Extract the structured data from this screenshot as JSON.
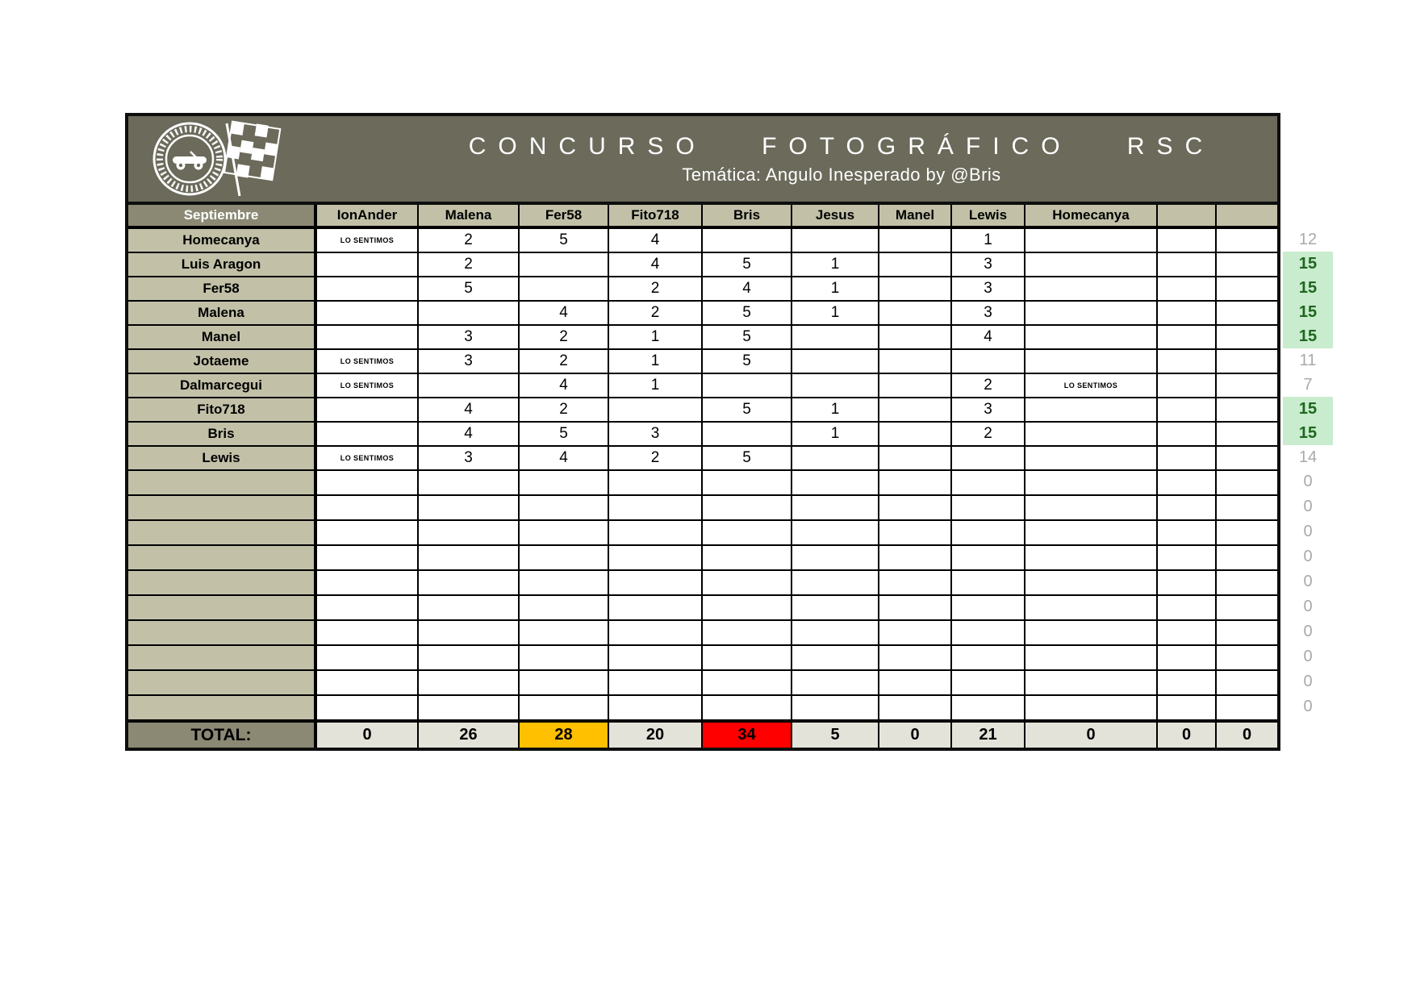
{
  "header": {
    "title": "CONCURSO FOTOGRÁFICO RSC",
    "subtitle": "Temática: Angulo Inesperado by @Bris",
    "logo": "roadster-sport-club-badge"
  },
  "sheet": {
    "month_label": "Septiembre",
    "columns": [
      "IonAnder",
      "Malena",
      "Fer58",
      "Fito718",
      "Bris",
      "Jesus",
      "Manel",
      "Lewis",
      "Homecanya",
      "",
      ""
    ],
    "apology_text": "LO SENTIMOS",
    "rows": [
      {
        "name": "Homecanya",
        "cells": [
          "LO SENTIMOS",
          "2",
          "5",
          "4",
          "",
          "",
          "",
          "1",
          "",
          "",
          ""
        ],
        "total": "12",
        "total_style": "gray"
      },
      {
        "name": "Luis Aragon",
        "cells": [
          "",
          "2",
          "",
          "4",
          "5",
          "1",
          "",
          "3",
          "",
          "",
          ""
        ],
        "total": "15",
        "total_style": "green"
      },
      {
        "name": "Fer58",
        "cells": [
          "",
          "5",
          "",
          "2",
          "4",
          "1",
          "",
          "3",
          "",
          "",
          ""
        ],
        "total": "15",
        "total_style": "green"
      },
      {
        "name": "Malena",
        "cells": [
          "",
          "",
          "4",
          "2",
          "5",
          "1",
          "",
          "3",
          "",
          "",
          ""
        ],
        "total": "15",
        "total_style": "green"
      },
      {
        "name": "Manel",
        "cells": [
          "",
          "3",
          "2",
          "1",
          "5",
          "",
          "",
          "4",
          "",
          "",
          ""
        ],
        "total": "15",
        "total_style": "green"
      },
      {
        "name": "Jotaeme",
        "cells": [
          "LO SENTIMOS",
          "3",
          "2",
          "1",
          "5",
          "",
          "",
          "",
          "",
          "",
          ""
        ],
        "total": "11",
        "total_style": "gray"
      },
      {
        "name": "Dalmarcegui",
        "cells": [
          "LO SENTIMOS",
          "",
          "4",
          "1",
          "",
          "",
          "",
          "2",
          "LO SENTIMOS",
          "",
          ""
        ],
        "total": "7",
        "total_style": "gray"
      },
      {
        "name": "Fito718",
        "cells": [
          "",
          "4",
          "2",
          "",
          "5",
          "1",
          "",
          "3",
          "",
          "",
          ""
        ],
        "total": "15",
        "total_style": "green"
      },
      {
        "name": "Bris",
        "cells": [
          "",
          "4",
          "5",
          "3",
          "",
          "1",
          "",
          "2",
          "",
          "",
          ""
        ],
        "total": "15",
        "total_style": "green"
      },
      {
        "name": "Lewis",
        "cells": [
          "LO SENTIMOS",
          "3",
          "4",
          "2",
          "5",
          "",
          "",
          "",
          "",
          "",
          ""
        ],
        "total": "14",
        "total_style": "gray"
      }
    ],
    "empty_row_count": 10,
    "empty_row_total": "0",
    "total_row": {
      "label": "TOTAL:",
      "values": [
        {
          "value": "0",
          "style": "plain"
        },
        {
          "value": "26",
          "style": "plain"
        },
        {
          "value": "28",
          "style": "orange"
        },
        {
          "value": "20",
          "style": "plain"
        },
        {
          "value": "34",
          "style": "red"
        },
        {
          "value": "5",
          "style": "plain"
        },
        {
          "value": "0",
          "style": "plain"
        },
        {
          "value": "21",
          "style": "plain"
        },
        {
          "value": "0",
          "style": "plain"
        },
        {
          "value": "0",
          "style": "plain"
        },
        {
          "value": "0",
          "style": "plain"
        }
      ]
    }
  },
  "colors": {
    "header_bar": "#6b6a5b",
    "month_cell": "#8b8974",
    "header_cell": "#c2c1a8",
    "total_value_bg": "#e3e3da",
    "highlight_orange": "#ffc000",
    "highlight_red": "#fe0000",
    "good_bg": "#c8eccd",
    "good_text": "#1e661e",
    "muted_text": "#a9a9a9"
  }
}
